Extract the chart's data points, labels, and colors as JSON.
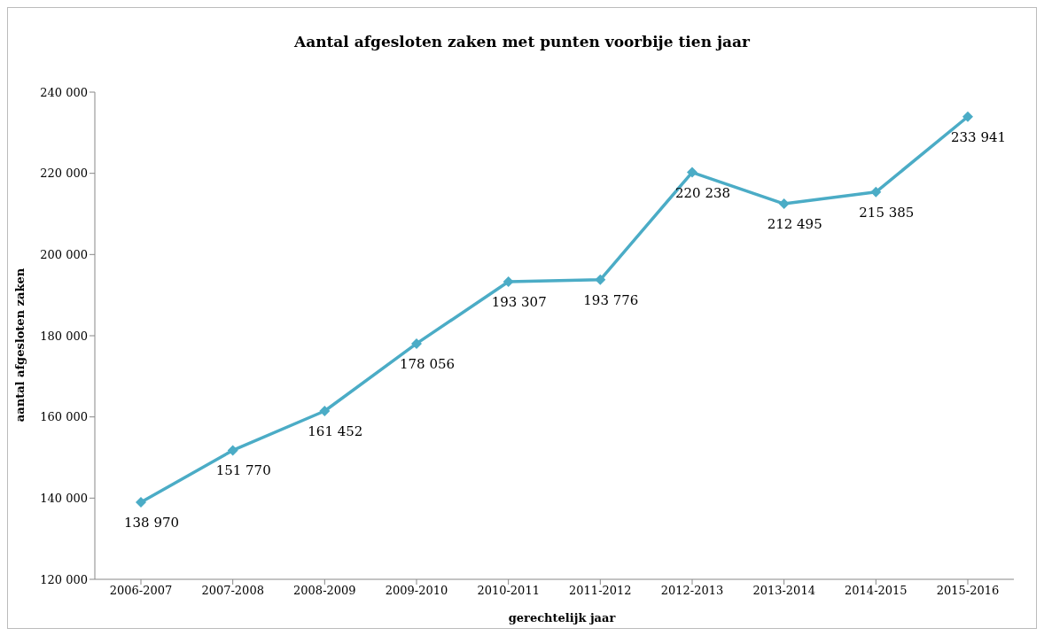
{
  "chart_data": {
    "type": "line",
    "title": "Aantal afgesloten zaken met punten voorbije tien jaar",
    "xlabel": "gerechtelijk jaar",
    "ylabel": "aantal afgesloten zaken",
    "categories": [
      "2006-2007",
      "2007-2008",
      "2008-2009",
      "2009-2010",
      "2010-2011",
      "2011-2012",
      "2012-2013",
      "2013-2014",
      "2014-2015",
      "2015-2016"
    ],
    "series": [
      {
        "color": "#4bacc6",
        "values": [
          138970,
          151770,
          161452,
          178056,
          193307,
          193776,
          220238,
          212495,
          215385,
          233941
        ],
        "value_labels": [
          "138 970",
          "151 770",
          "161 452",
          "178 056",
          "193 307",
          "193 776",
          "220 238",
          "212 495",
          "215 385",
          "233 941"
        ]
      }
    ],
    "ylim": [
      120000,
      240000
    ],
    "yticks": [
      {
        "value": 120000,
        "label": "120 000"
      },
      {
        "value": 140000,
        "label": "140 000"
      },
      {
        "value": 160000,
        "label": "160 000"
      },
      {
        "value": 180000,
        "label": "180 000"
      },
      {
        "value": 200000,
        "label": "200 000"
      },
      {
        "value": 220000,
        "label": "220 000"
      },
      {
        "value": 240000,
        "label": "240 000"
      }
    ],
    "grid": false,
    "legend": false,
    "marker": "diamond",
    "line_style": "solid"
  }
}
